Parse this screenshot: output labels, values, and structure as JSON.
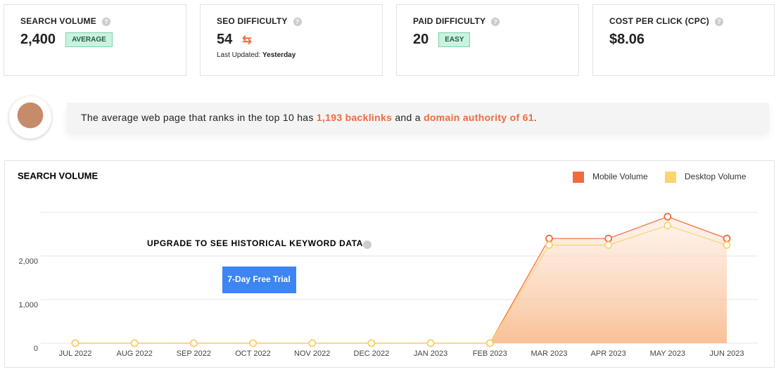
{
  "metrics": [
    {
      "label": "SEARCH VOLUME",
      "value": "2,400",
      "badge": "AVERAGE"
    },
    {
      "label": "SEO DIFFICULTY",
      "value": "54",
      "note_label": "Last Updated:",
      "note_value": "Yesterday"
    },
    {
      "label": "PAID DIFFICULTY",
      "value": "20",
      "badge": "EASY"
    },
    {
      "label": "COST PER CLICK (CPC)",
      "value": "$8.06"
    }
  ],
  "banner": {
    "segments": [
      {
        "text": "The average web page that ranks in the top 10 has ",
        "highlight": false
      },
      {
        "text": "1,193 backlinks",
        "highlight": true
      },
      {
        "text": " and a ",
        "highlight": false
      },
      {
        "text": "domain authority of 61",
        "highlight": true
      },
      {
        "text": ".",
        "highlight": false
      }
    ]
  },
  "chart_data": {
    "type": "line",
    "title": "SEARCH VOLUME",
    "overlay_text": "UPGRADE TO SEE HISTORICAL KEYWORD DATA",
    "button": "7-Day Free Trial",
    "categories": [
      "JUL 2022",
      "AUG 2022",
      "SEP 2022",
      "OCT 2022",
      "NOV 2022",
      "DEC 2022",
      "JAN 2023",
      "FEB 2023",
      "MAR 2023",
      "APR 2023",
      "MAY 2023",
      "JUN 2023"
    ],
    "series": [
      {
        "name": "Mobile Volume",
        "color": "#f26a3d",
        "values": [
          0,
          0,
          0,
          0,
          0,
          0,
          0,
          0,
          2400,
          2400,
          2900,
          2400
        ]
      },
      {
        "name": "Desktop Volume",
        "color": "#fbd46d",
        "values": [
          0,
          0,
          0,
          0,
          0,
          0,
          0,
          0,
          2250,
          2250,
          2700,
          2250
        ]
      }
    ],
    "ylim": [
      0,
      3000
    ],
    "yticks": [
      0,
      {
        "value": 1000,
        "label": "1,000"
      },
      {
        "value": 2000,
        "label": "2,000"
      }
    ],
    "grid": true,
    "area": true,
    "legend": "top-right"
  }
}
